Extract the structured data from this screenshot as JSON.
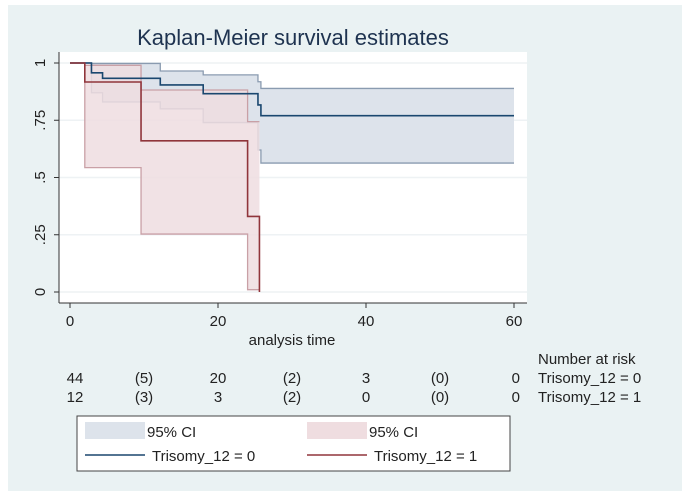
{
  "chart_data": {
    "type": "line",
    "step": true,
    "title": "Kaplan-Meier survival estimates",
    "xlabel": "analysis time",
    "ylabel": "",
    "xlim": [
      0,
      60
    ],
    "ylim": [
      0,
      1
    ],
    "xticks": [
      0,
      20,
      40,
      60
    ],
    "xtick_labels": [
      "0",
      "20",
      "40",
      "60"
    ],
    "yticks": [
      0,
      0.25,
      0.5,
      0.75,
      1
    ],
    "ytick_labels": [
      "0",
      ".25",
      ".5",
      ".75",
      "1"
    ],
    "grid": "horizontal",
    "colors": {
      "group0": "#1a476f",
      "group0_ci": "#dde3eb",
      "group1": "#90353b",
      "group1_ci": "#efdde0",
      "background": "#eaf2f3"
    },
    "series": [
      {
        "name": "Trisomy_12 = 0",
        "x": [
          0,
          2.9,
          4.4,
          12.2,
          18,
          25.4,
          25.8,
          60
        ],
        "y": [
          1,
          0.957,
          0.933,
          0.904,
          0.866,
          0.817,
          0.77,
          0.77
        ],
        "ci_upper": [
          1,
          0.998,
          0.998,
          0.965,
          0.948,
          0.918,
          0.889,
          0.889
        ],
        "ci_lower": [
          1,
          0.87,
          0.83,
          0.8,
          0.74,
          0.62,
          0.563,
          0.563
        ]
      },
      {
        "name": "Trisomy_12 = 1",
        "x": [
          0,
          2,
          9.6,
          24,
          25.6
        ],
        "y": [
          1,
          0.917,
          0.66,
          0.33,
          0
        ],
        "ci_upper": [
          1,
          0.99,
          0.882,
          0.744,
          0.744
        ],
        "ci_lower": [
          1,
          0.543,
          0.253,
          0.01,
          0.01
        ]
      }
    ],
    "risk_table": {
      "heading": "Number at risk",
      "columns": [
        "44",
        "(5)",
        "20",
        "(2)",
        "3",
        "(0)",
        "0"
      ],
      "rows": [
        {
          "label": "Trisomy_12 = 0",
          "values": [
            "44",
            "(5)",
            "20",
            "(2)",
            "3",
            "(0)",
            "0"
          ]
        },
        {
          "label": "Trisomy_12 = 1",
          "values": [
            "12",
            "(3)",
            "3",
            "(2)",
            "0",
            "(0)",
            "0"
          ]
        }
      ]
    },
    "legend": {
      "position": "bottom",
      "entries": [
        {
          "label": "95% CI",
          "kind": "area",
          "series": 0
        },
        {
          "label": "95% CI",
          "kind": "area",
          "series": 1
        },
        {
          "label": "Trisomy_12 = 0",
          "kind": "line",
          "series": 0
        },
        {
          "label": "Trisomy_12 = 1",
          "kind": "line",
          "series": 1
        }
      ]
    }
  }
}
